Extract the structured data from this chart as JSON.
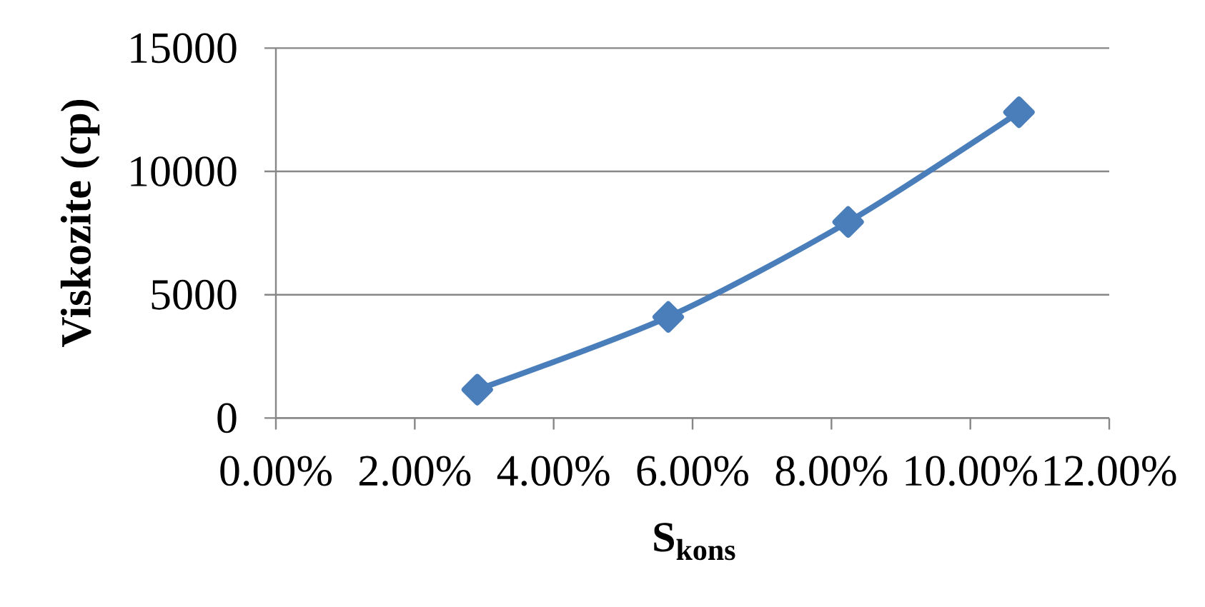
{
  "chart_data": {
    "type": "line",
    "xlabel": "S$_{kons}$",
    "ylabel": "Viskozite (cp)",
    "x": [
      2.9,
      5.65,
      8.24,
      10.7
    ],
    "series": [
      {
        "color": "#4a7ebb",
        "values": [
          1150,
          4100,
          7950,
          12400
        ]
      }
    ],
    "xlim": [
      0,
      12
    ],
    "xticks": [
      {
        "value": 0,
        "label": "0.00%"
      },
      {
        "value": 2,
        "label": "2.00%"
      },
      {
        "value": 4,
        "label": "4.00%"
      },
      {
        "value": 6,
        "label": "6.00%"
      },
      {
        "value": 8,
        "label": "8.00%"
      },
      {
        "value": 10,
        "label": "10.00%"
      },
      {
        "value": 12,
        "label": "12.00%"
      }
    ],
    "ylim": [
      0,
      15000
    ],
    "yticks": [
      0,
      5000,
      10000,
      15000
    ],
    "grid": "y",
    "marker": "diamond",
    "line_style": "solid"
  }
}
